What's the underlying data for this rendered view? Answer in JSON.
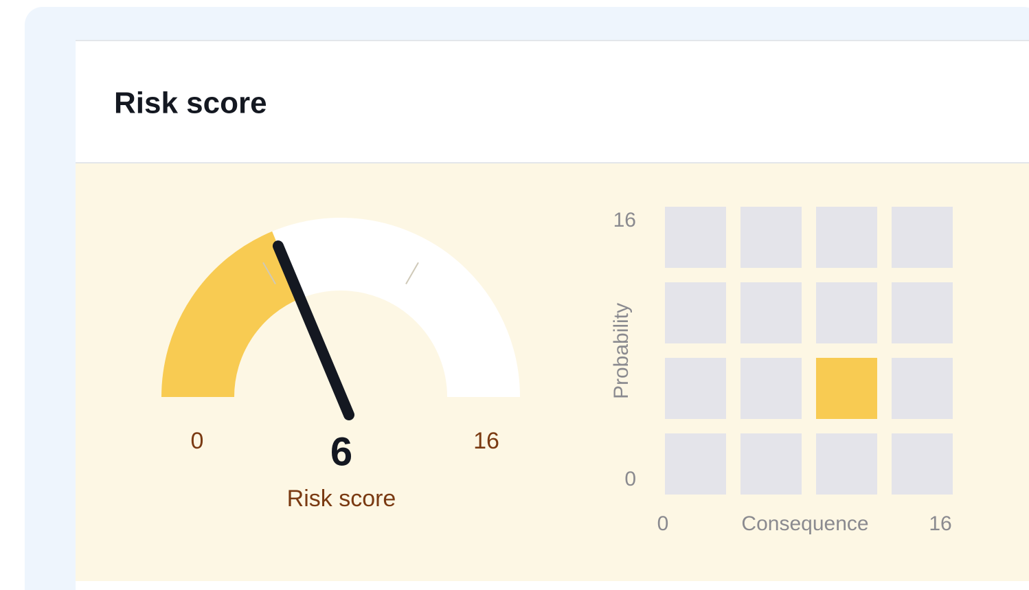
{
  "header": {
    "title": "Risk score"
  },
  "gauge": {
    "min": 0,
    "max": 16,
    "value": 6,
    "label": "Risk score",
    "fill_color": "#f8cb52",
    "track_color": "#ffffff"
  },
  "matrix": {
    "rows": 4,
    "columns": 4,
    "highlight": {
      "row": 1,
      "column": 2
    },
    "y_label": "Probability",
    "yticks": [
      0,
      16
    ],
    "x_label": "Consequence",
    "xticks": [
      0,
      16
    ],
    "cell_color": "#e4e4ea",
    "highlight_color": "#f8cb52"
  }
}
